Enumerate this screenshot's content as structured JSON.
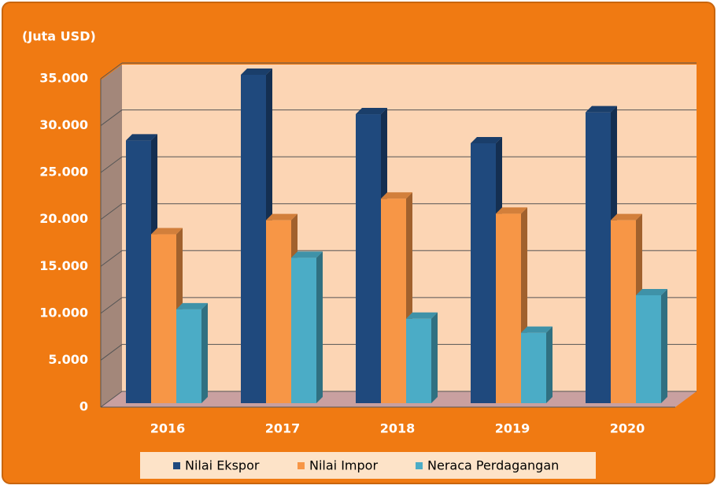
{
  "chart_data": {
    "type": "bar3d",
    "ylabel": "(Juta USD)",
    "categories": [
      "2016",
      "2017",
      "2018",
      "2019",
      "2020"
    ],
    "series": [
      {
        "name": "Nilai Ekspor",
        "color": "#1f497d",
        "values": [
          28000,
          35000,
          30800,
          27700,
          31000
        ]
      },
      {
        "name": "Nilai Impor",
        "color": "#f79646",
        "values": [
          18000,
          19500,
          21800,
          20200,
          19500
        ]
      },
      {
        "name": "Neraca Perdagangan",
        "color": "#4bacc6",
        "values": [
          10000,
          15500,
          9000,
          7500,
          11500
        ]
      }
    ],
    "ylim": [
      0,
      35000
    ],
    "yticks": [
      0,
      {
        "value": 5000,
        "label": "5.000"
      },
      {
        "value": 10000,
        "label": "10.000"
      },
      {
        "value": 15000,
        "label": "15.000"
      },
      {
        "value": 20000,
        "label": "20.000"
      },
      {
        "value": 25000,
        "label": "25.000"
      },
      {
        "value": 30000,
        "label": "30.000"
      },
      {
        "value": 35000,
        "label": "35.000"
      }
    ],
    "grid": true,
    "legend": "bottom"
  }
}
